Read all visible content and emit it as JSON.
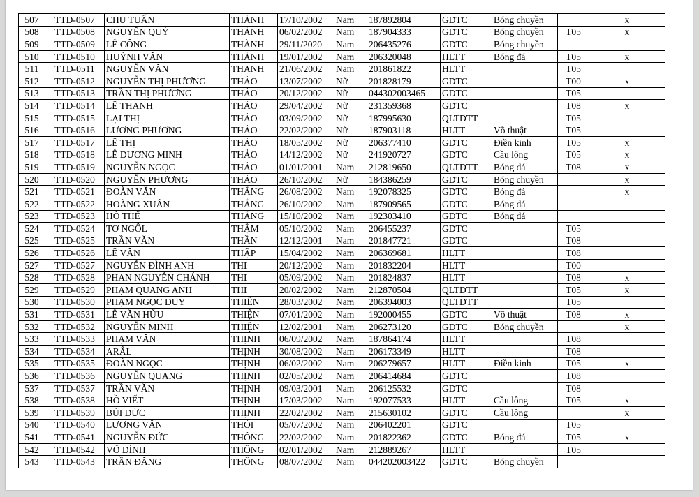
{
  "rows": [
    [
      "507",
      "TTD-0507",
      "CHU TUẤN",
      "THÀNH",
      "17/10/2002",
      "Nam",
      "187892804",
      "GDTC",
      "Bóng chuyền",
      "",
      "x"
    ],
    [
      "508",
      "TTD-0508",
      "NGUYỄN QUÝ",
      "THÀNH",
      "06/02/2002",
      "Nam",
      "187904333",
      "GDTC",
      "Bóng chuyền",
      "T05",
      "x"
    ],
    [
      "509",
      "TTD-0509",
      "LÊ CÔNG",
      "THÀNH",
      "29/11/2020",
      "Nam",
      "206435276",
      "GDTC",
      "Bóng chuyền",
      "",
      ""
    ],
    [
      "510",
      "TTD-0510",
      "HUỲNH VĂN",
      "THÀNH",
      "19/01/2002",
      "Nam",
      "206320048",
      "HLTT",
      "Bóng đá",
      "T05",
      "x"
    ],
    [
      "511",
      "TTD-0511",
      "NGUYỄN VĂN",
      "THẠNH",
      "21/06/2002",
      "Nam",
      "201861822",
      "HLTT",
      "",
      "T05",
      ""
    ],
    [
      "512",
      "TTD-0512",
      "NGUYỄN THỊ PHƯƠNG",
      "THẢO",
      "13/07/2002",
      "Nữ",
      "201828179",
      "GDTC",
      "",
      "T00",
      "x"
    ],
    [
      "513",
      "TTD-0513",
      "TRẦN THỊ PHƯƠNG",
      "THẢO",
      "20/12/2002",
      "Nữ",
      "044302003465",
      "GDTC",
      "",
      "T05",
      ""
    ],
    [
      "514",
      "TTD-0514",
      "LÊ THANH",
      "THẢO",
      "29/04/2002",
      "Nữ",
      "231359368",
      "GDTC",
      "",
      "T08",
      "x"
    ],
    [
      "515",
      "TTD-0515",
      "LẠI THỊ",
      "THẢO",
      "03/09/2002",
      "Nữ",
      "187995630",
      "QLTDTT",
      "",
      "T05",
      ""
    ],
    [
      "516",
      "TTD-0516",
      "LƯƠNG PHƯƠNG",
      "THẢO",
      "22/02/2002",
      "Nữ",
      "187903118",
      "HLTT",
      "Võ thuật",
      "T05",
      ""
    ],
    [
      "517",
      "TTD-0517",
      "LÊ THỊ",
      "THẢO",
      "18/05/2002",
      "Nữ",
      "206377410",
      "GDTC",
      "Điền kinh",
      "T05",
      "x"
    ],
    [
      "518",
      "TTD-0518",
      "LÊ DƯƠNG MINH",
      "THẢO",
      "14/12/2002",
      "Nữ",
      "241920727",
      "GDTC",
      "Cầu lông",
      "T05",
      "x"
    ],
    [
      "519",
      "TTD-0519",
      "NGUYỄN NGỌC",
      "THẢO",
      "01/01/2001",
      "Nam",
      "212819650",
      "QLTDTT",
      "Bóng đá",
      "T08",
      "x"
    ],
    [
      "520",
      "TTD-0520",
      "NGUYỄN PHƯƠNG",
      "THẢO",
      "26/10/2002",
      "Nữ",
      "184386259",
      "GDTC",
      "Bóng chuyền",
      "",
      "x"
    ],
    [
      "521",
      "TTD-0521",
      "ĐOÀN VĂN",
      "THẮNG",
      "26/08/2002",
      "Nam",
      "192078325",
      "GDTC",
      "Bóng đá",
      "",
      "x"
    ],
    [
      "522",
      "TTD-0522",
      "HOÀNG XUÂN",
      "THẮNG",
      "26/10/2002",
      "Nam",
      "187909565",
      "GDTC",
      "Bóng đá",
      "",
      ""
    ],
    [
      "523",
      "TTD-0523",
      "HỒ THẾ",
      "THẮNG",
      "15/10/2002",
      "Nam",
      "192303410",
      "GDTC",
      "Bóng đá",
      "",
      ""
    ],
    [
      "524",
      "TTD-0524",
      "TƠ NGÔL",
      "THẬM",
      "05/10/2002",
      "Nam",
      "206455237",
      "GDTC",
      "",
      "T05",
      ""
    ],
    [
      "525",
      "TTD-0525",
      "TRẦN VĂN",
      "THẦN",
      "12/12/2001",
      "Nam",
      "201847721",
      "GDTC",
      "",
      "T08",
      ""
    ],
    [
      "526",
      "TTD-0526",
      "LÊ VĂN",
      "THẬP",
      "15/04/2002",
      "Nam",
      "206369681",
      "HLTT",
      "",
      "T08",
      ""
    ],
    [
      "527",
      "TTD-0527",
      "NGUYỄN ĐÌNH ANH",
      "THI",
      "20/12/2002",
      "Nam",
      "201832204",
      "HLTT",
      "",
      "T00",
      ""
    ],
    [
      "528",
      "TTD-0528",
      "PHAN NGUYỄN CHÁNH",
      "THI",
      "05/09/2002",
      "Nam",
      "201824837",
      "HLTT",
      "",
      "T08",
      "x"
    ],
    [
      "529",
      "TTD-0529",
      "PHẠM QUANG ANH",
      "THI",
      "20/02/2002",
      "Nam",
      "212870504",
      "QLTDTT",
      "",
      "T05",
      "x"
    ],
    [
      "530",
      "TTD-0530",
      "PHẠM NGỌC DUY",
      "THIÊN",
      "28/03/2002",
      "Nam",
      "206394003",
      "QLTDTT",
      "",
      "T05",
      ""
    ],
    [
      "531",
      "TTD-0531",
      "LÊ VĂN HỮU",
      "THIỆN",
      "07/01/2002",
      "Nam",
      "192000455",
      "GDTC",
      "Võ thuật",
      "T08",
      "x"
    ],
    [
      "532",
      "TTD-0532",
      "NGUYỄN MINH",
      "THIỆN",
      "12/02/2001",
      "Nam",
      "206273120",
      "GDTC",
      "Bóng chuyền",
      "",
      "x"
    ],
    [
      "533",
      "TTD-0533",
      "PHẠM VĂN",
      "THỊNH",
      "06/09/2002",
      "Nam",
      "187864174",
      "HLTT",
      "",
      "T08",
      ""
    ],
    [
      "534",
      "TTD-0534",
      "ARÂL",
      "THỊNH",
      "30/08/2002",
      "Nam",
      "206173349",
      "HLTT",
      "",
      "T08",
      ""
    ],
    [
      "535",
      "TTD-0535",
      "ĐOÀN NGỌC",
      "THỊNH",
      "06/02/2002",
      "Nam",
      "206279657",
      "HLTT",
      "Điền kinh",
      "T05",
      "x"
    ],
    [
      "536",
      "TTD-0536",
      "NGUYỄN QUANG",
      "THỊNH",
      "02/05/2002",
      "Nam",
      "206414684",
      "GDTC",
      "",
      "T08",
      ""
    ],
    [
      "537",
      "TTD-0537",
      "TRẦN VĂN",
      "THỊNH",
      "09/03/2001",
      "Nam",
      "206125532",
      "GDTC",
      "",
      "T08",
      ""
    ],
    [
      "538",
      "TTD-0538",
      "HỒ VIẾT",
      "THỊNH",
      "17/03/2002",
      "Nam",
      "192077533",
      "HLTT",
      "Cầu lông",
      "T05",
      "x"
    ],
    [
      "539",
      "TTD-0539",
      "BÙI ĐỨC",
      "THỊNH",
      "22/02/2002",
      "Nam",
      "215630102",
      "GDTC",
      "Cầu lông",
      "",
      "x"
    ],
    [
      "540",
      "TTD-0540",
      "LƯƠNG VĂN",
      "THỎI",
      "05/07/2002",
      "Nam",
      "206402201",
      "GDTC",
      "",
      "T05",
      ""
    ],
    [
      "541",
      "TTD-0541",
      "NGUYỄN ĐỨC",
      "THÔNG",
      "22/02/2002",
      "Nam",
      "201822362",
      "GDTC",
      "Bóng đá",
      "T05",
      "x"
    ],
    [
      "542",
      "TTD-0542",
      "VÕ ĐÌNH",
      "THÔNG",
      "02/01/2002",
      "Nam",
      "212889267",
      "HLTT",
      "",
      "T05",
      ""
    ],
    [
      "543",
      "TTD-0543",
      "TRẦN ĐĂNG",
      "THÔNG",
      "08/07/2002",
      "Nam",
      "044202003422",
      "GDTC",
      "Bóng chuyền",
      "",
      ""
    ]
  ]
}
